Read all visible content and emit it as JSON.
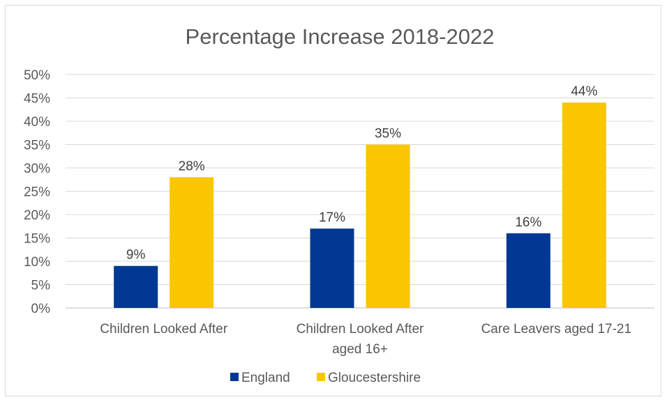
{
  "chart_data": {
    "type": "bar",
    "title": "Percentage Increase 2018-2022",
    "categories": [
      [
        "Children Looked After"
      ],
      [
        "Children Looked After",
        "aged 16+"
      ],
      [
        "Care Leavers aged 17-21"
      ]
    ],
    "series": [
      {
        "name": "England",
        "values": [
          9,
          17,
          16
        ],
        "labels": [
          "9%",
          "17%",
          "16%"
        ],
        "color": "#003893"
      },
      {
        "name": "Gloucestershire",
        "values": [
          28,
          35,
          44
        ],
        "labels": [
          "28%",
          "35%",
          "44%"
        ],
        "color": "#F9C600"
      }
    ],
    "ylim": [
      0,
      50
    ],
    "yticks": [
      "0%",
      "5%",
      "10%",
      "15%",
      "20%",
      "25%",
      "30%",
      "35%",
      "40%",
      "45%",
      "50%"
    ],
    "grid": true,
    "legend_position": "bottom"
  }
}
